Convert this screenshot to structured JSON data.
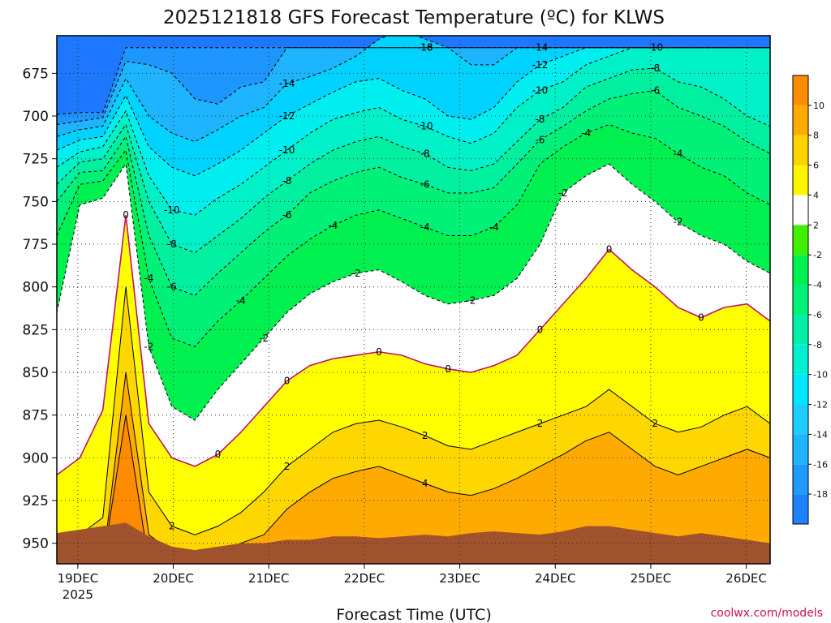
{
  "chart_data": {
    "type": "heatmap",
    "title": "2025121818 GFS Forecast Temperature (ºC) for KLWS",
    "xlabel": "Forecast Time (UTC)",
    "ylabel": "",
    "credit": "coolwx.com/models",
    "y_axis": {
      "units": "hPa",
      "range": [
        962,
        653
      ],
      "ticks": [
        675,
        700,
        725,
        750,
        775,
        800,
        825,
        850,
        875,
        900,
        925,
        950
      ],
      "tick_labels": [
        "675",
        "700",
        "725",
        "750",
        "775",
        "800",
        "825",
        "850",
        "875",
        "900",
        "925",
        "950"
      ]
    },
    "x_axis": {
      "units": "days since 2025-12-19 00Z",
      "range": [
        -0.22,
        7.25
      ],
      "ticks": [
        0,
        1,
        2,
        3,
        4,
        5,
        6,
        7
      ],
      "tick_labels": [
        "19DEC",
        "20DEC",
        "21DEC",
        "22DEC",
        "23DEC",
        "24DEC",
        "25DEC",
        "26DEC"
      ],
      "year_label": "2025"
    },
    "colorbar": {
      "levels": [
        -20,
        -18,
        -16,
        -14,
        -12,
        -10,
        -8,
        -6,
        -4,
        -2,
        2,
        4,
        6,
        8,
        10,
        12
      ],
      "labels": [
        "-18",
        "-16",
        "-14",
        "-12",
        "-10",
        "-8",
        "-6",
        "-4",
        "-2",
        "2",
        "4",
        "6",
        "8",
        "10"
      ],
      "label_values": [
        -18,
        -16,
        -14,
        -12,
        -10,
        -8,
        -6,
        -4,
        -2,
        2,
        4,
        6,
        8,
        10
      ],
      "colors": [
        "#1e82ff",
        "#1e9bff",
        "#1eb4ff",
        "#1ecdff",
        "#00e6ff",
        "#00f0d0",
        "#00f0a8",
        "#00f078",
        "#00f050",
        "#40f000",
        "#ffffff",
        "#fff500",
        "#ffd200",
        "#ffaa00",
        "#ff8c00",
        "#ff6e00",
        "#e65a00"
      ]
    },
    "series": [
      {
        "name": "-18",
        "value": -18,
        "p": [
          699,
          698,
          698,
          660,
          660,
          660,
          660,
          660,
          660,
          660,
          660,
          660,
          660,
          660,
          660,
          660,
          660,
          660,
          660,
          660,
          660,
          660,
          660,
          660,
          660,
          660,
          660,
          660,
          660,
          660,
          660,
          660
        ]
      },
      {
        "name": "-16",
        "value": -16,
        "p": [
          705,
          703,
          701,
          668,
          670,
          675,
          690,
          693,
          683,
          680,
          660,
          660,
          660,
          660,
          660,
          660,
          660,
          660,
          660,
          660,
          660,
          660,
          660,
          660,
          660,
          660,
          660,
          660,
          660,
          660,
          660,
          660
        ]
      },
      {
        "name": "-14",
        "value": -14,
        "p": [
          712,
          708,
          706,
          678,
          700,
          710,
          715,
          708,
          700,
          695,
          681,
          677,
          672,
          665,
          655,
          650,
          655,
          660,
          670,
          670,
          660,
          660,
          660,
          660,
          660,
          660,
          660,
          660,
          660,
          660,
          660,
          660
        ]
      },
      {
        "name": "-12",
        "value": -12,
        "p": [
          720,
          714,
          712,
          688,
          718,
          730,
          735,
          728,
          720,
          710,
          700,
          693,
          686,
          680,
          678,
          685,
          690,
          700,
          702,
          695,
          680,
          670,
          665,
          660,
          660,
          660,
          660,
          660,
          660,
          660,
          660,
          660
        ]
      },
      {
        "name": "-10",
        "value": -10,
        "p": [
          730,
          721,
          718,
          697,
          735,
          755,
          758,
          748,
          740,
          730,
          720,
          710,
          702,
          698,
          695,
          702,
          706,
          712,
          716,
          710,
          695,
          685,
          680,
          670,
          665,
          660,
          660,
          660,
          660,
          660,
          660,
          660
        ]
      },
      {
        "name": "-8",
        "value": -8,
        "p": [
          740,
          727,
          725,
          705,
          750,
          775,
          780,
          770,
          760,
          748,
          738,
          728,
          720,
          715,
          712,
          718,
          722,
          730,
          732,
          728,
          715,
          702,
          695,
          683,
          678,
          673,
          672,
          680,
          683,
          690,
          700,
          706
        ]
      },
      {
        "name": "-6",
        "value": -6,
        "p": [
          750,
          733,
          732,
          712,
          770,
          800,
          805,
          792,
          780,
          768,
          758,
          745,
          738,
          733,
          730,
          736,
          740,
          745,
          745,
          742,
          728,
          714,
          706,
          697,
          690,
          687,
          685,
          695,
          700,
          706,
          715,
          722
        ]
      },
      {
        "name": "-4",
        "value": -4,
        "p": [
          770,
          740,
          738,
          720,
          795,
          830,
          835,
          820,
          808,
          795,
          782,
          772,
          764,
          758,
          755,
          760,
          765,
          770,
          770,
          765,
          752,
          728,
          718,
          710,
          705,
          710,
          713,
          722,
          730,
          735,
          745,
          752
        ]
      },
      {
        "name": "-2",
        "value": -2,
        "p": [
          815,
          752,
          748,
          728,
          835,
          870,
          878,
          860,
          845,
          830,
          815,
          804,
          797,
          792,
          790,
          797,
          805,
          810,
          808,
          805,
          795,
          775,
          745,
          735,
          728,
          740,
          750,
          762,
          770,
          775,
          785,
          792
        ]
      },
      {
        "name": "0",
        "value": 0,
        "p": [
          910,
          900,
          872,
          758,
          880,
          900,
          905,
          898,
          885,
          870,
          855,
          846,
          842,
          840,
          838,
          840,
          845,
          848,
          850,
          846,
          840,
          825,
          810,
          795,
          778,
          790,
          800,
          812,
          818,
          812,
          810,
          820
        ]
      },
      {
        "name": "2",
        "value": 2,
        "p": [
          945,
          945,
          935,
          800,
          920,
          940,
          945,
          940,
          932,
          920,
          905,
          895,
          885,
          880,
          878,
          882,
          887,
          893,
          895,
          890,
          885,
          880,
          875,
          870,
          860,
          870,
          880,
          885,
          882,
          875,
          870,
          880
        ]
      },
      {
        "name": "4",
        "value": 4,
        "p": [
          962,
          962,
          962,
          850,
          945,
          955,
          958,
          955,
          950,
          945,
          930,
          920,
          912,
          908,
          905,
          910,
          915,
          920,
          922,
          918,
          912,
          905,
          898,
          890,
          885,
          895,
          905,
          910,
          905,
          900,
          895,
          900
        ]
      },
      {
        "name": "6",
        "value": 6,
        "p": [
          962,
          962,
          962,
          875,
          962,
          962,
          962,
          962,
          962,
          962,
          962,
          962,
          962,
          962,
          962,
          962,
          962,
          962,
          962,
          962,
          962,
          962,
          962,
          962,
          962,
          962,
          962,
          962,
          962,
          962,
          962,
          962
        ]
      }
    ],
    "contours": [
      {
        "label": "-18"
      },
      {
        "label": "-16"
      },
      {
        "label": "-14"
      },
      {
        "label": "-14"
      },
      {
        "label": "-12"
      },
      {
        "label": "-12"
      },
      {
        "label": "-10"
      },
      {
        "label": "-10"
      },
      {
        "label": "-10"
      },
      {
        "label": "-10"
      },
      {
        "label": "-10"
      },
      {
        "label": "-8"
      },
      {
        "label": "-8"
      },
      {
        "label": "-8"
      },
      {
        "label": "-8"
      },
      {
        "label": "-8"
      },
      {
        "label": "-6"
      },
      {
        "label": "-6"
      },
      {
        "label": "-6"
      },
      {
        "label": "-6"
      },
      {
        "label": "-6"
      },
      {
        "label": "-4"
      },
      {
        "label": "-4"
      },
      {
        "label": "-4"
      },
      {
        "label": "-4"
      },
      {
        "label": "-4"
      },
      {
        "label": "-4"
      },
      {
        "label": "-4"
      },
      {
        "label": "-2"
      },
      {
        "label": "-2"
      },
      {
        "label": "-2"
      },
      {
        "label": "-2"
      },
      {
        "label": "-2"
      },
      {
        "label": "-2"
      },
      {
        "label": "0"
      },
      {
        "label": "0"
      },
      {
        "label": "0"
      },
      {
        "label": "0"
      },
      {
        "label": "0"
      },
      {
        "label": "0"
      },
      {
        "label": "0"
      },
      {
        "label": "0"
      },
      {
        "label": "2"
      },
      {
        "label": "2"
      },
      {
        "label": "2"
      },
      {
        "label": "2"
      },
      {
        "label": "2"
      },
      {
        "label": "6"
      },
      {
        "label": "4"
      }
    ],
    "terrain_color": "#a0522d"
  }
}
